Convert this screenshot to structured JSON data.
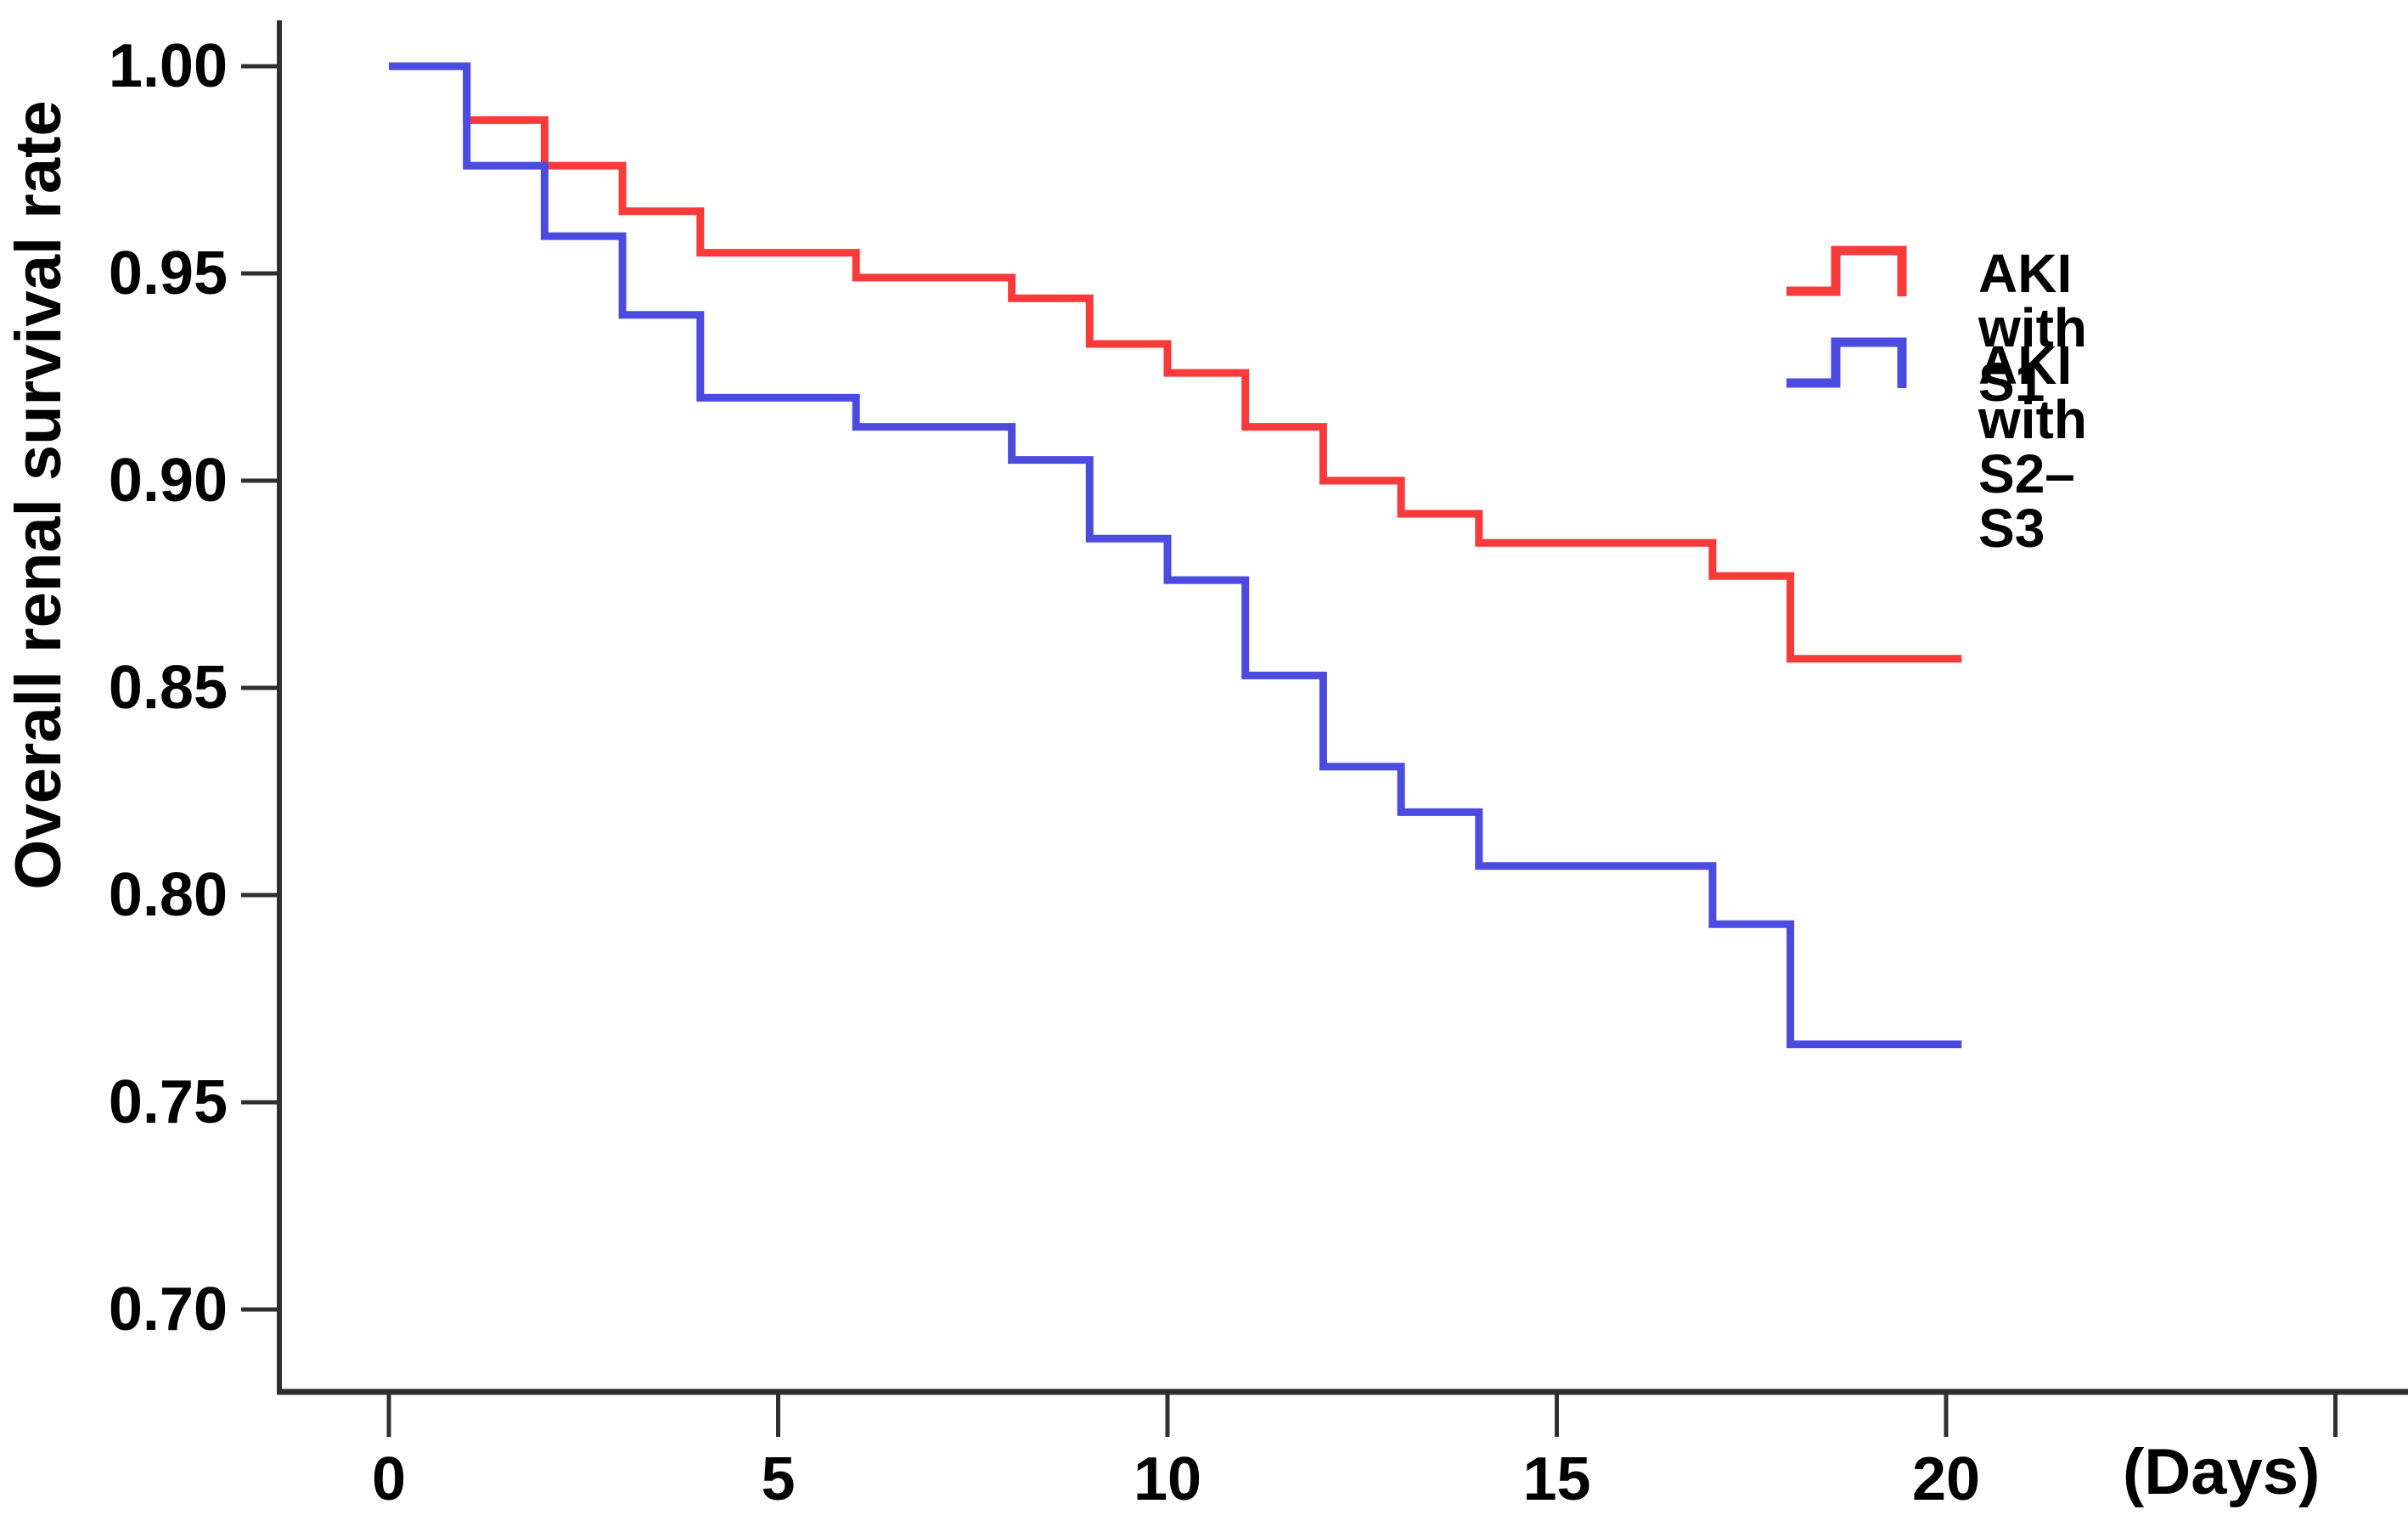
{
  "figure": {
    "background": "#ffffff",
    "axis_color": "#2f2f2f"
  },
  "chart_data": {
    "type": "line",
    "subtype": "kaplan-meier-step",
    "title": "",
    "xlabel": "(Days)",
    "ylabel": "Overall renal survival rate",
    "xlim": [
      0,
      20
    ],
    "ylim": [
      0.7,
      1.0
    ],
    "grid": false,
    "legend_position": "upper-right",
    "x_ticks": [
      {
        "value": 0,
        "label": "0"
      },
      {
        "value": 5,
        "label": "5"
      },
      {
        "value": 10,
        "label": "10"
      },
      {
        "value": 15,
        "label": "15"
      },
      {
        "value": 20,
        "label": "20"
      },
      {
        "value": 25,
        "label": ""
      }
    ],
    "y_ticks": [
      {
        "value": 1.0,
        "label": "1.00"
      },
      {
        "value": 0.95,
        "label": "0.95"
      },
      {
        "value": 0.9,
        "label": "0.90"
      },
      {
        "value": 0.85,
        "label": "0.85"
      },
      {
        "value": 0.8,
        "label": "0.80"
      },
      {
        "value": 0.75,
        "label": "0.75"
      },
      {
        "value": 0.7,
        "label": "0.70"
      }
    ],
    "series": [
      {
        "name": "AKI with S1",
        "color": "#F93A3A",
        "end_x": 20.2,
        "steps": [
          [
            0,
            1.0
          ],
          [
            1,
            0.987
          ],
          [
            2,
            0.976
          ],
          [
            3,
            0.965
          ],
          [
            4,
            0.955
          ],
          [
            6,
            0.949
          ],
          [
            8,
            0.944
          ],
          [
            9,
            0.933
          ],
          [
            10,
            0.926
          ],
          [
            11,
            0.913
          ],
          [
            12,
            0.9
          ],
          [
            13,
            0.892
          ],
          [
            14,
            0.885
          ],
          [
            17,
            0.877
          ],
          [
            18,
            0.857
          ]
        ]
      },
      {
        "name": "AKI with S2–S3",
        "color": "#4B4BE0",
        "end_x": 20.2,
        "steps": [
          [
            0,
            1.0
          ],
          [
            1,
            0.976
          ],
          [
            2,
            0.959
          ],
          [
            3,
            0.94
          ],
          [
            4,
            0.92
          ],
          [
            6,
            0.913
          ],
          [
            8,
            0.905
          ],
          [
            9,
            0.886
          ],
          [
            10,
            0.876
          ],
          [
            11,
            0.853
          ],
          [
            12,
            0.831
          ],
          [
            13,
            0.82
          ],
          [
            14,
            0.807
          ],
          [
            17,
            0.793
          ],
          [
            18,
            0.764
          ]
        ]
      }
    ]
  }
}
